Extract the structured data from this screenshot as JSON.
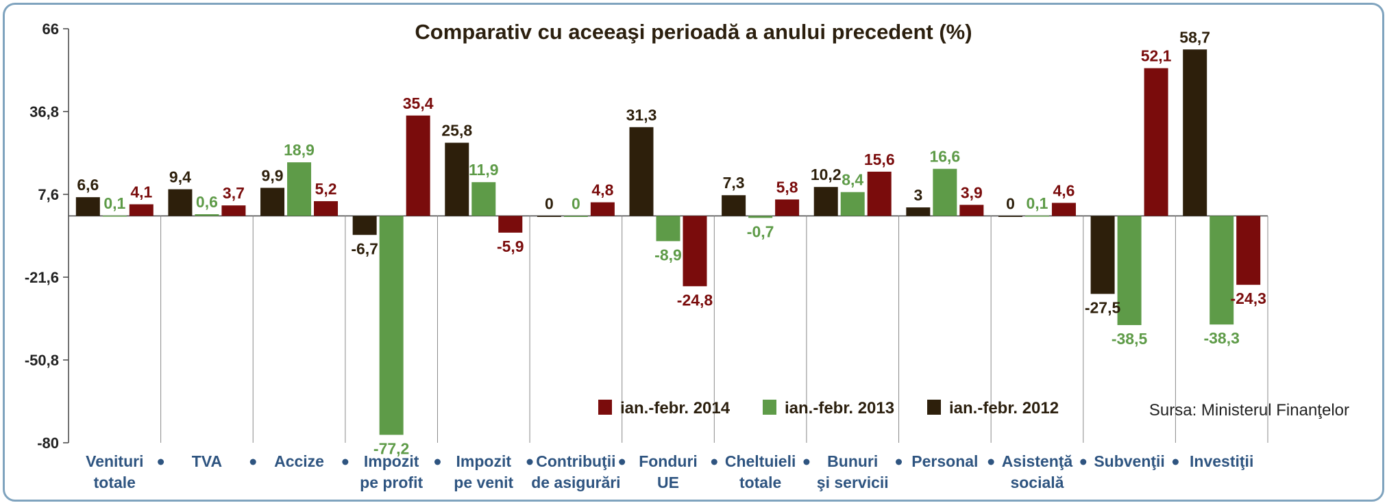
{
  "chart_data": {
    "type": "bar",
    "title": "Comparativ cu aceeaşi perioadă a anului precedent (%)",
    "ylim": [
      -80,
      66
    ],
    "yticks": [
      {
        "value": 66,
        "label": "66"
      },
      {
        "value": 36.8,
        "label": "36,8"
      },
      {
        "value": 7.6,
        "label": "7,6"
      },
      {
        "value": -21.6,
        "label": "-21,6"
      },
      {
        "value": -50.8,
        "label": "-50,8"
      },
      {
        "value": -80,
        "label": "-80"
      }
    ],
    "categories": [
      [
        "Venituri",
        "totale"
      ],
      [
        "TVA"
      ],
      [
        "Accize"
      ],
      [
        "Impozit",
        "pe profit"
      ],
      [
        "Impozit",
        "pe venit"
      ],
      [
        "Contribuţii",
        "de asigurări"
      ],
      [
        "Fonduri",
        "UE"
      ],
      [
        "Cheltuieli",
        "totale"
      ],
      [
        "Bunuri",
        "şi servicii"
      ],
      [
        "Personal"
      ],
      [
        "Asistenţă",
        "socială"
      ],
      [
        "Subvenţii"
      ],
      [
        "Investiţii"
      ]
    ],
    "series": [
      {
        "name": "ian.-febr. 2012",
        "color": "#2d1f0b",
        "values": [
          6.6,
          9.4,
          9.9,
          -6.7,
          25.8,
          0,
          31.3,
          7.3,
          10.2,
          3,
          0,
          -27.5,
          58.7
        ],
        "labels": [
          "6,6",
          "9,4",
          "9,9",
          "-6,7",
          "25,8",
          "0",
          "31,3",
          "7,3",
          "10,2",
          "3",
          "0",
          "-27,5",
          "58,7"
        ]
      },
      {
        "name": "ian.-febr. 2013",
        "color": "#5e9b48",
        "values": [
          0.1,
          0.6,
          18.9,
          -77.2,
          11.9,
          0,
          -8.9,
          -0.7,
          8.4,
          16.6,
          0.1,
          -38.5,
          -38.3
        ],
        "labels": [
          "0,1",
          "0,6",
          "18,9",
          "-77,2",
          "11,9",
          "0",
          "-8,9",
          "-0,7",
          "8,4",
          "16,6",
          "0,1",
          "-38,5",
          "-38,3"
        ]
      },
      {
        "name": "ian.-febr. 2014",
        "color": "#7a0c0c",
        "values": [
          4.1,
          3.7,
          5.2,
          35.4,
          -5.9,
          4.8,
          -24.8,
          5.8,
          15.6,
          3.9,
          4.6,
          52.1,
          -24.3
        ],
        "labels": [
          "4,1",
          "3,7",
          "5,2",
          "35,4",
          "-5,9",
          "4,8",
          "-24,8",
          "5,8",
          "15,6",
          "3,9",
          "4,6",
          "52,1",
          "-24,3"
        ]
      }
    ],
    "legend": {
      "placement": "bottom-right",
      "order": [
        "ian.-febr. 2014",
        "ian.-febr. 2013",
        "ian.-febr. 2012"
      ]
    },
    "source": "Sursa: Ministerul Finanţelor",
    "colors": {
      "axis": "#444444",
      "category_text": "#2e5480",
      "separator_dot": "#2e5480",
      "frame": "#7fa3be"
    }
  }
}
